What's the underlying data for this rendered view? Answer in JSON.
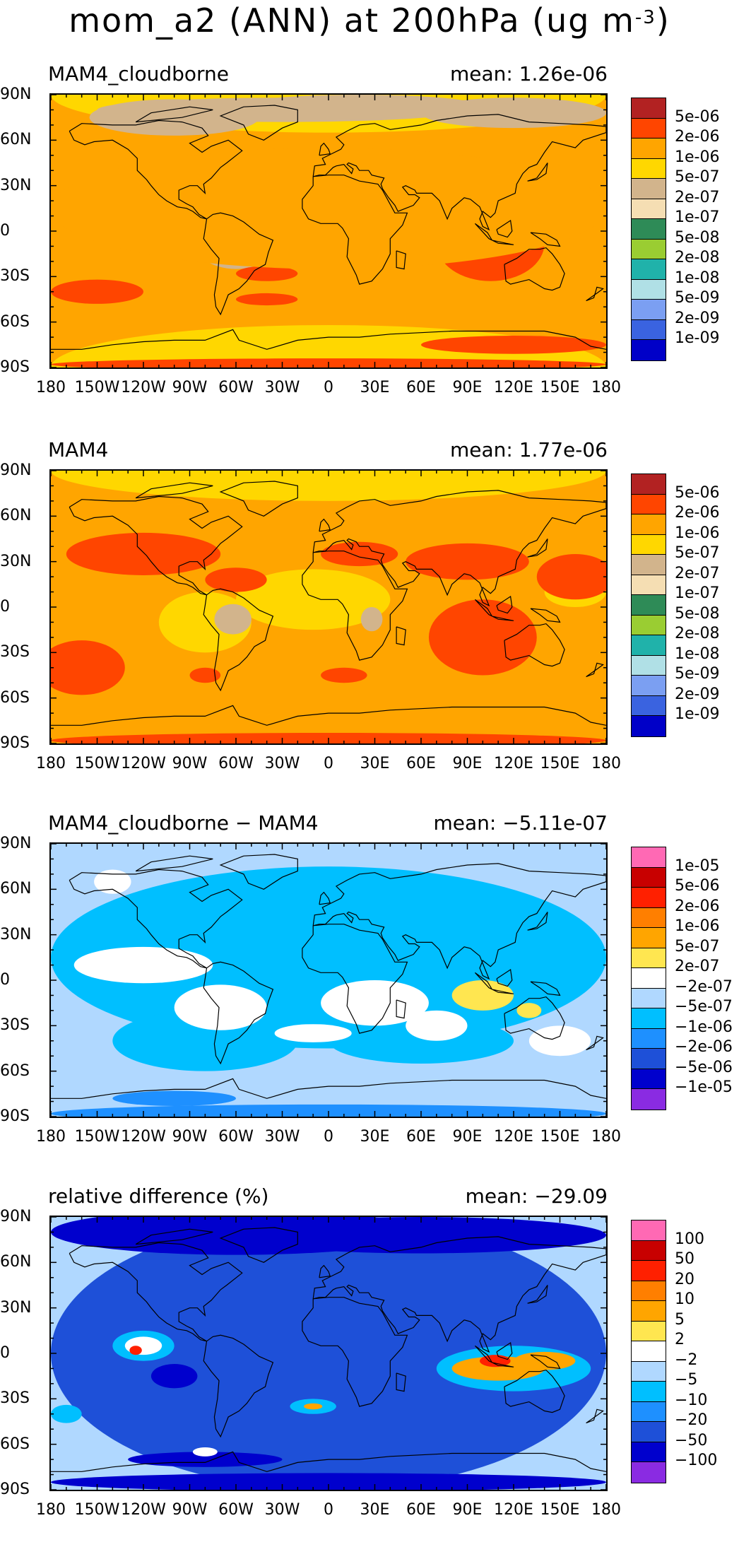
{
  "title": {
    "main": "mom_a2 (ANN) at 200hPa (ug m",
    "exponent": "-3",
    "close": ")"
  },
  "lat_labels": [
    "90N",
    "60N",
    "30N",
    "0",
    "30S",
    "60S",
    "90S"
  ],
  "lon_labels": [
    "180",
    "150W",
    "120W",
    "90W",
    "60W",
    "30W",
    "0",
    "30E",
    "60E",
    "90E",
    "120E",
    "150E",
    "180"
  ],
  "colors": {
    "abs": [
      "#0000c8",
      "#3a63e0",
      "#7b9ff2",
      "#b0e0e6",
      "#20b2aa",
      "#9acd32",
      "#2e8b57",
      "#f5deb3",
      "#d2b48c",
      "#ffd700",
      "#ffa500",
      "#ff4500",
      "#b22222"
    ],
    "diff": [
      "#8a2be2",
      "#0000cd",
      "#1e50d8",
      "#1e90ff",
      "#00bfff",
      "#b0d8ff",
      "#ffffff",
      "#ffe650",
      "#ffa500",
      "#ff7f00",
      "#ff2000",
      "#c80000",
      "#ff69b4"
    ]
  },
  "panels": [
    {
      "title": "MAM4_cloudborne",
      "mean": "mean:  1.26e-06",
      "levels": [
        "1e-09",
        "2e-09",
        "5e-09",
        "1e-08",
        "2e-08",
        "5e-08",
        "1e-07",
        "2e-07",
        "5e-07",
        "1e-06",
        "2e-06",
        "5e-06"
      ],
      "palette": "abs"
    },
    {
      "title": "MAM4",
      "mean": "mean:  1.77e-06",
      "levels": [
        "1e-09",
        "2e-09",
        "5e-09",
        "1e-08",
        "2e-08",
        "5e-08",
        "1e-07",
        "2e-07",
        "5e-07",
        "1e-06",
        "2e-06",
        "5e-06"
      ],
      "palette": "abs"
    },
    {
      "title": "MAM4_cloudborne − MAM4",
      "mean": "mean: −5.11e-07",
      "levels": [
        "−1e-05",
        "−5e-06",
        "−2e-06",
        "−1e-06",
        "−5e-07",
        "−2e-07",
        "2e-07",
        "5e-07",
        "1e-06",
        "2e-06",
        "5e-06",
        "1e-05"
      ],
      "palette": "diff"
    },
    {
      "title": "relative difference (%)",
      "mean": "mean:  −29.09",
      "levels": [
        "−100",
        "−50",
        "−20",
        "−10",
        "−5",
        "−2",
        "2",
        "5",
        "10",
        "20",
        "50",
        "100"
      ],
      "palette": "diff"
    }
  ],
  "chart_data": [
    {
      "type": "heatmap",
      "title": "MAM4_cloudborne",
      "mean": 1.26e-06,
      "xlim": [
        -180,
        180
      ],
      "ylim": [
        -90,
        90
      ],
      "levels": [
        1e-09,
        2e-09,
        5e-09,
        1e-08,
        2e-08,
        5e-08,
        1e-07,
        2e-07,
        5e-07,
        1e-06,
        2e-06,
        5e-06
      ]
    },
    {
      "type": "heatmap",
      "title": "MAM4",
      "mean": 1.77e-06,
      "xlim": [
        -180,
        180
      ],
      "ylim": [
        -90,
        90
      ],
      "levels": [
        1e-09,
        2e-09,
        5e-09,
        1e-08,
        2e-08,
        5e-08,
        1e-07,
        2e-07,
        5e-07,
        1e-06,
        2e-06,
        5e-06
      ]
    },
    {
      "type": "heatmap",
      "title": "MAM4_cloudborne - MAM4",
      "mean": -5.11e-07,
      "xlim": [
        -180,
        180
      ],
      "ylim": [
        -90,
        90
      ],
      "levels": [
        -1e-05,
        -5e-06,
        -2e-06,
        -1e-06,
        -5e-07,
        -2e-07,
        2e-07,
        5e-07,
        1e-06,
        2e-06,
        5e-06,
        1e-05
      ]
    },
    {
      "type": "heatmap",
      "title": "relative difference (%)",
      "mean": -29.09,
      "xlim": [
        -180,
        180
      ],
      "ylim": [
        -90,
        90
      ],
      "levels": [
        -100,
        -50,
        -20,
        -10,
        -5,
        -2,
        2,
        5,
        10,
        20,
        50,
        100
      ]
    }
  ]
}
